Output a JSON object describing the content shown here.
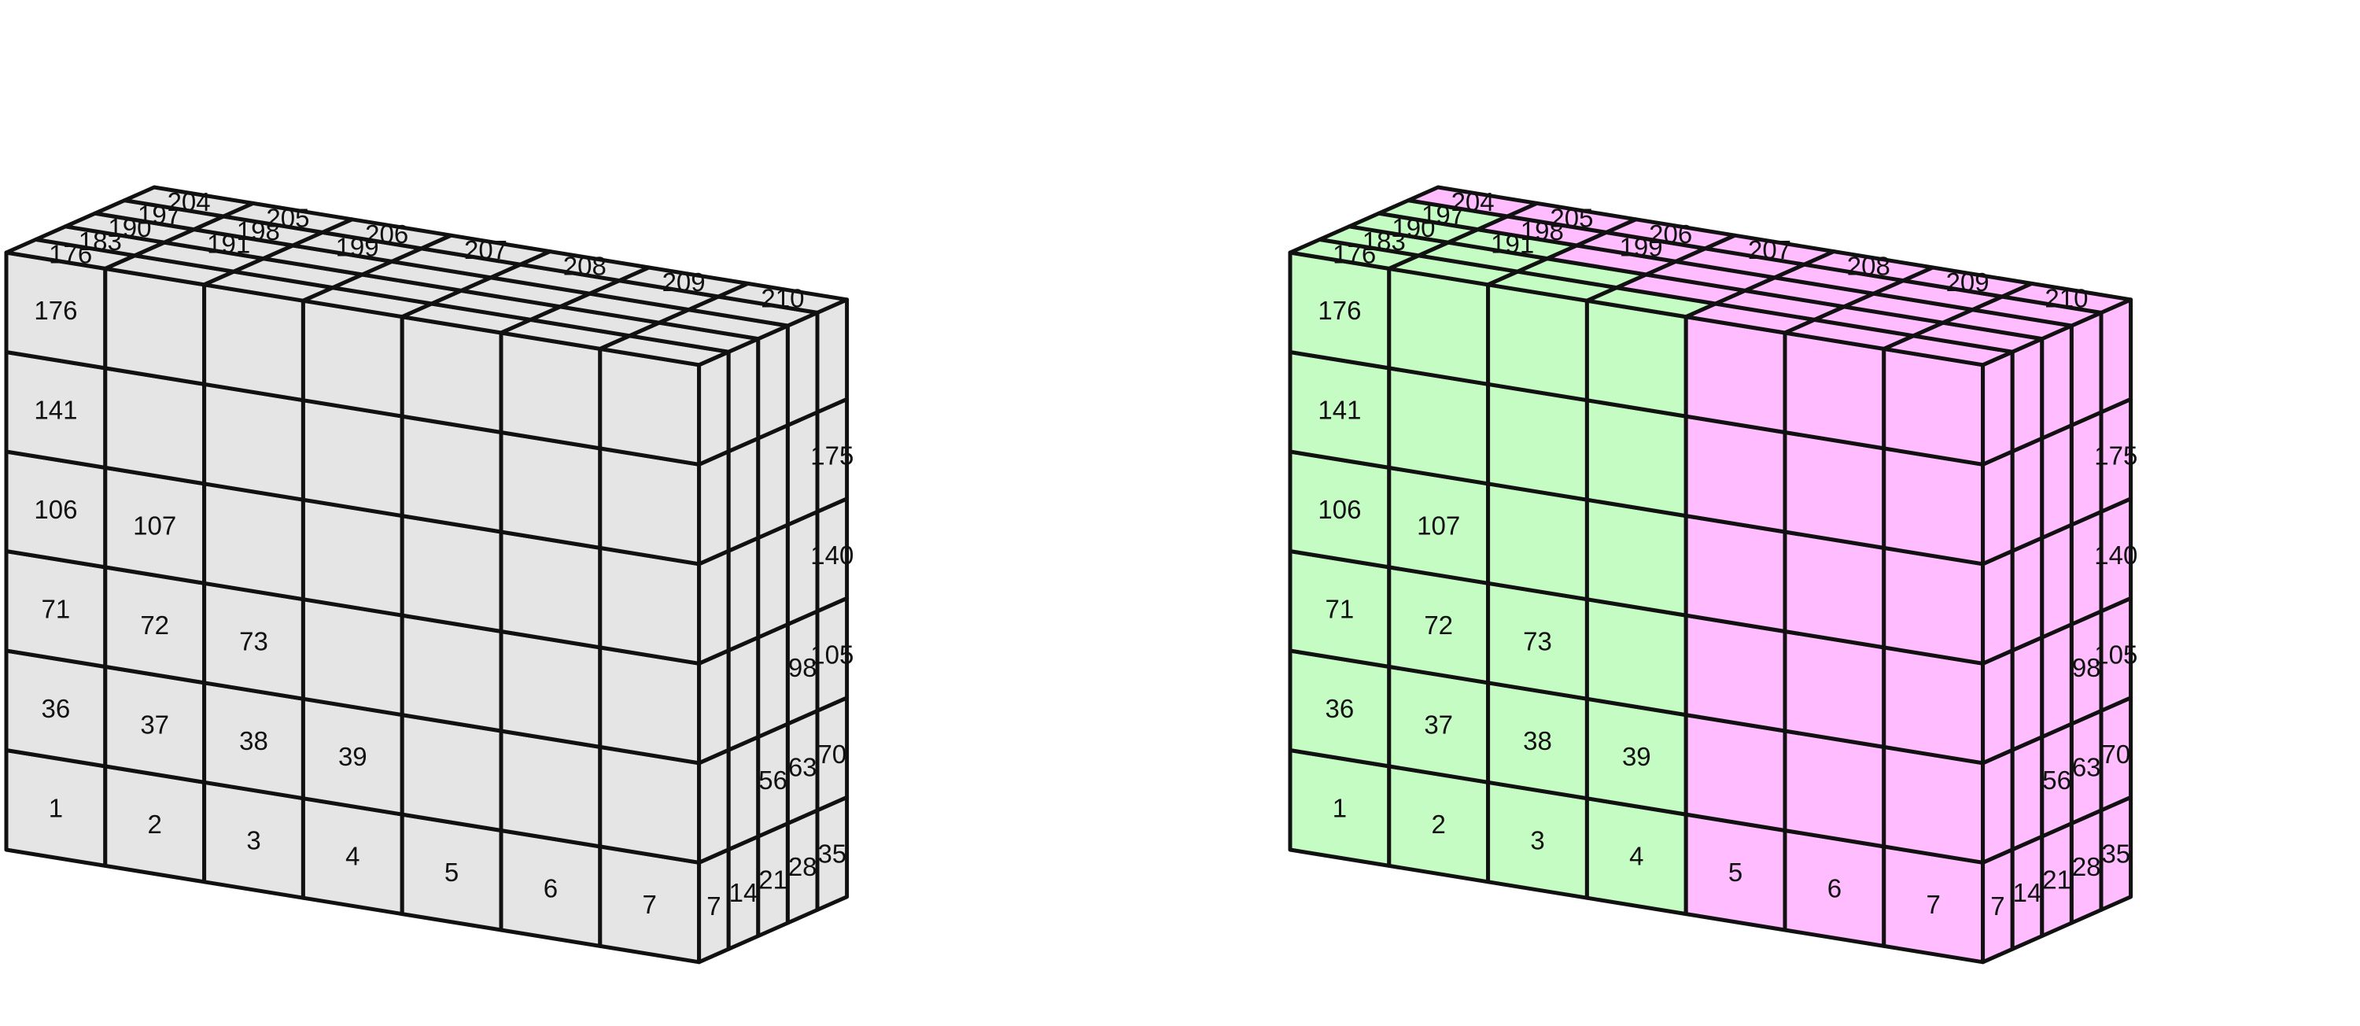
{
  "grid": {
    "columns": 7,
    "rows": 6,
    "depth": 5
  },
  "colors": {
    "background": "#ffffff",
    "stroke": "#111111",
    "plain_fill": "#e5e5e5",
    "group_a_fill": "#c4fcc4",
    "group_b_fill": "#ffbcff"
  },
  "front_labels": [
    [
      "1",
      "2",
      "3",
      "4",
      "5",
      "6",
      "7"
    ],
    [
      "36",
      "37",
      "38",
      "39",
      "",
      "",
      ""
    ],
    [
      "71",
      "72",
      "73",
      "",
      "",
      "",
      ""
    ],
    [
      "106",
      "107",
      "",
      "",
      "",
      "",
      ""
    ],
    [
      "141",
      "",
      "",
      "",
      "",
      "",
      ""
    ],
    [
      "176",
      "",
      "",
      "",
      "",
      "",
      ""
    ]
  ],
  "side_labels": [
    [
      "7",
      "14",
      "21",
      "28",
      "35"
    ],
    [
      "",
      "",
      "56",
      "63",
      "70"
    ],
    [
      "",
      "",
      "",
      "98",
      "105"
    ],
    [
      "",
      "",
      "",
      "",
      "140"
    ],
    [
      "",
      "",
      "",
      "",
      "175"
    ],
    [
      "",
      "",
      "",
      "",
      ""
    ]
  ],
  "top_labels": [
    [
      "176",
      "",
      "",
      "",
      "",
      "",
      ""
    ],
    [
      "183",
      "",
      "",
      "",
      "",
      "",
      ""
    ],
    [
      "190",
      "191",
      "",
      "",
      "",
      "",
      ""
    ],
    [
      "197",
      "198",
      "199",
      "",
      "",
      "",
      ""
    ],
    [
      "204",
      "205",
      "206",
      "207",
      "208",
      "209",
      "210"
    ]
  ],
  "cubes": [
    {
      "name": "plain",
      "split": null
    },
    {
      "name": "partitioned",
      "split": {
        "group_a_columns": 4,
        "depth_shift": 1
      }
    }
  ]
}
